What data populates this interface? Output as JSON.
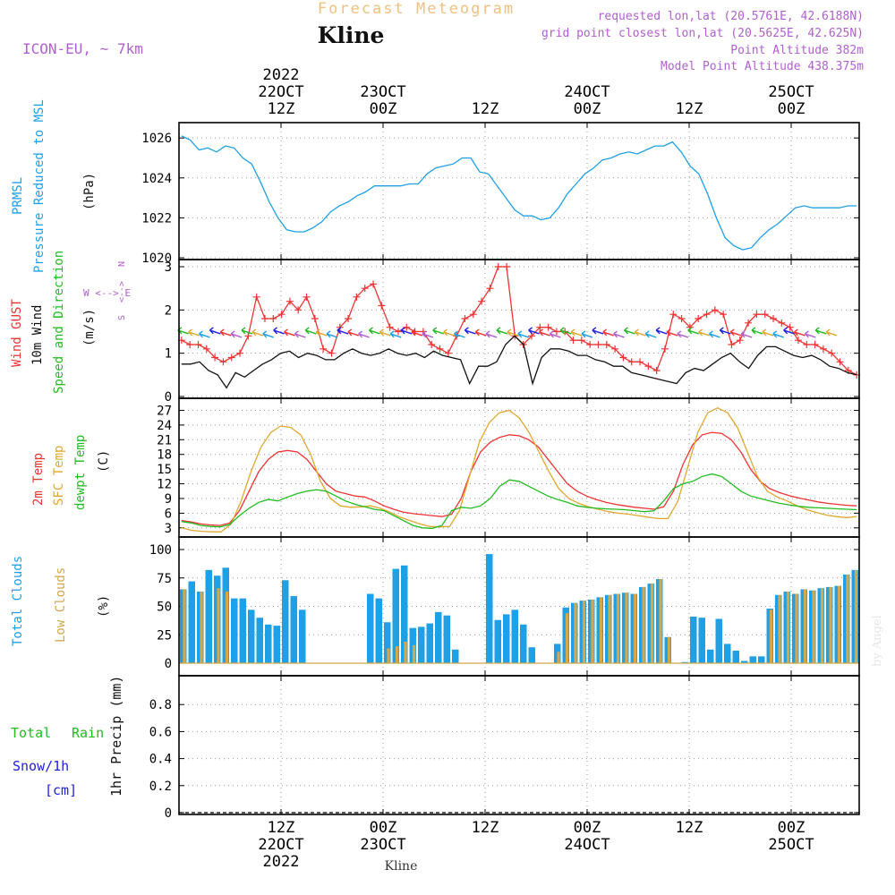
{
  "header": {
    "forecast_title": "Forecast Meteogram",
    "location": "Kline",
    "model": "ICON-EU, ~ 7km",
    "requested": "requested lon,lat (20.5761E, 42.6188N)",
    "gridpoint": "grid point closest lon,lat (20.5625E, 42.625N)",
    "point_alt": "Point Altitude 382m",
    "model_alt": "Model Point Altitude 438.375m",
    "bottom_location": "Kline",
    "watermark": "by Angel"
  },
  "time_axis": {
    "top": [
      {
        "t": 12,
        "lines": [
          "2022",
          "22OCT",
          "12Z"
        ]
      },
      {
        "t": 24,
        "lines": [
          "23OCT",
          "00Z"
        ]
      },
      {
        "t": 36,
        "lines": [
          "12Z"
        ]
      },
      {
        "t": 48,
        "lines": [
          "24OCT",
          "00Z"
        ]
      },
      {
        "t": 60,
        "lines": [
          "12Z"
        ]
      },
      {
        "t": 72,
        "lines": [
          "25OCT",
          "00Z"
        ]
      }
    ],
    "bottom": [
      {
        "t": 12,
        "lines": [
          "12Z",
          "22OCT",
          "2022"
        ]
      },
      {
        "t": 24,
        "lines": [
          "00Z",
          "23OCT"
        ]
      },
      {
        "t": 36,
        "lines": [
          "12Z"
        ]
      },
      {
        "t": 48,
        "lines": [
          "00Z",
          "24OCT"
        ]
      },
      {
        "t": 60,
        "lines": [
          "12Z"
        ]
      },
      {
        "t": 72,
        "lines": [
          "00Z",
          "25OCT"
        ]
      }
    ]
  },
  "panel_labels": {
    "pressure": {
      "a": "PRMSL",
      "b": "Pressure Reduced to MSL",
      "unit": "(hPa)"
    },
    "wind": {
      "a": "Wind GUST",
      "b": "10m Wind",
      "c": "Speed and Direction",
      "unit": "(m/s)",
      "compass_we": "W <--> E",
      "compass_n": "N",
      "compass_s": "S",
      "compass_arrows": "<-->"
    },
    "temp": {
      "a": "2m Temp",
      "b": "SFC Temp",
      "c": "dewpt Temp",
      "unit": "(C)"
    },
    "cloud": {
      "a": "Total Clouds",
      "b": "Low Clouds",
      "unit": "(%)"
    },
    "precip": {
      "a": "Total",
      "a2": "Rain",
      "b": "Snow/1h",
      "c": "[cm]",
      "unit": "1hr Precip (mm)"
    }
  },
  "colors": {
    "pressure": "#1ea0e6",
    "gust": "#ee3333",
    "wind": "#111111",
    "t2m": "#ee3333",
    "tsfc": "#e0a830",
    "dewpt": "#22bb22",
    "total_cloud": "#1ea0e6",
    "low_cloud": "#d2a84a",
    "purple": "#b060d0",
    "title_orange": "#f0c080",
    "blue_label": "#2020e0"
  },
  "chart_data": [
    {
      "type": "line",
      "name": "pressure",
      "ylim": [
        1020,
        1026.5
      ],
      "yticks": [
        1020,
        1022,
        1024,
        1026
      ],
      "series": [
        {
          "name": "PRMSL",
          "values": [
            1026.1,
            1025.9,
            1025.4,
            1025.5,
            1025.3,
            1025.6,
            1025.5,
            1025.0,
            1024.7,
            1023.8,
            1022.8,
            1022.0,
            1021.4,
            1021.3,
            1021.3,
            1021.5,
            1021.8,
            1022.3,
            1022.6,
            1022.8,
            1023.1,
            1023.3,
            1023.6,
            1023.6,
            1023.6,
            1023.6,
            1023.7,
            1023.7,
            1024.2,
            1024.5,
            1024.6,
            1024.7,
            1025.0,
            1025.0,
            1024.3,
            1024.2,
            1023.6,
            1023.0,
            1022.4,
            1022.1,
            1022.1,
            1021.9,
            1022.0,
            1022.5,
            1023.2,
            1023.7,
            1024.2,
            1024.5,
            1024.9,
            1025.0,
            1025.2,
            1025.3,
            1025.2,
            1025.4,
            1025.6,
            1025.6,
            1025.8,
            1025.3,
            1024.6,
            1024.2,
            1023.2,
            1022.0,
            1021.0,
            1020.6,
            1020.4,
            1020.5,
            1021.0,
            1021.4,
            1021.7,
            1022.1,
            1022.5,
            1022.6,
            1022.5,
            1022.5,
            1022.5,
            1022.5,
            1022.6,
            1022.6
          ]
        }
      ]
    },
    {
      "type": "line",
      "name": "wind",
      "ylim": [
        0,
        3
      ],
      "yticks": [
        0,
        1,
        2,
        3
      ],
      "series": [
        {
          "name": "Wind GUST",
          "values": [
            1.3,
            1.2,
            1.2,
            1.1,
            0.9,
            0.8,
            0.9,
            1.0,
            1.4,
            2.3,
            1.8,
            1.8,
            1.9,
            2.2,
            2.0,
            2.3,
            1.8,
            1.1,
            1.0,
            1.6,
            1.8,
            2.3,
            2.5,
            2.6,
            2.1,
            1.6,
            1.5,
            1.6,
            1.5,
            1.5,
            1.2,
            1.1,
            1.0,
            1.4,
            1.8,
            1.9,
            2.2,
            2.5,
            3.0,
            3.0,
            1.4,
            1.2,
            1.4,
            1.6,
            1.6,
            1.5,
            1.5,
            1.3,
            1.3,
            1.2,
            1.2,
            1.2,
            1.1,
            0.9,
            0.8,
            0.8,
            0.7,
            0.6,
            1.1,
            1.9,
            1.8,
            1.6,
            1.8,
            1.9,
            2.0,
            1.9,
            1.2,
            1.3,
            1.7,
            1.9,
            1.9,
            1.8,
            1.7,
            1.6,
            1.3,
            1.2,
            1.2,
            1.1,
            1.0,
            0.8,
            0.6,
            0.5
          ]
        },
        {
          "name": "10m Wind",
          "values": [
            0.75,
            0.75,
            0.8,
            0.6,
            0.5,
            0.2,
            0.55,
            0.45,
            0.6,
            0.75,
            0.85,
            1.0,
            1.05,
            0.9,
            1.0,
            0.95,
            0.85,
            0.85,
            1.0,
            1.1,
            1.0,
            0.95,
            1.0,
            1.1,
            1.0,
            0.95,
            1.0,
            0.9,
            1.05,
            0.95,
            0.9,
            0.85,
            0.3,
            0.7,
            0.7,
            0.8,
            1.2,
            1.4,
            1.2,
            0.3,
            0.9,
            1.1,
            1.1,
            1.05,
            0.95,
            0.95,
            0.85,
            0.8,
            0.7,
            0.7,
            0.55,
            0.5,
            0.45,
            0.4,
            0.35,
            0.3,
            0.55,
            0.65,
            0.6,
            0.75,
            0.9,
            1.0,
            0.8,
            0.65,
            0.95,
            1.15,
            1.15,
            1.05,
            0.95,
            0.9,
            0.95,
            0.85,
            0.7,
            0.65,
            0.55,
            0.5
          ]
        }
      ]
    },
    {
      "type": "line",
      "name": "temperature",
      "ylim": [
        1.5,
        28
      ],
      "yticks": [
        3,
        6,
        9,
        12,
        15,
        18,
        21,
        24,
        27
      ],
      "series": [
        {
          "name": "2m Temp",
          "values": [
            4.5,
            4.2,
            3.8,
            3.6,
            3.5,
            4.0,
            6.5,
            10.5,
            14.5,
            17.0,
            18.5,
            18.8,
            18.5,
            17.0,
            14.5,
            12.0,
            10.5,
            10.0,
            9.5,
            9.3,
            8.5,
            7.5,
            6.8,
            6.2,
            5.9,
            5.7,
            5.5,
            5.3,
            5.8,
            9.0,
            14.5,
            18.5,
            20.5,
            21.5,
            22.0,
            21.8,
            21.0,
            19.5,
            17.0,
            14.5,
            12.0,
            10.5,
            9.5,
            8.8,
            8.2,
            7.8,
            7.5,
            7.2,
            7.0,
            6.8,
            7.3,
            10.5,
            16.0,
            20.0,
            22.0,
            22.5,
            22.3,
            21.0,
            18.5,
            15.0,
            12.5,
            11.0,
            10.2,
            9.6,
            9.1,
            8.7,
            8.3,
            8.0,
            7.8,
            7.6,
            7.5
          ]
        },
        {
          "name": "SFC Temp",
          "values": [
            3.0,
            2.5,
            2.3,
            2.2,
            2.2,
            3.8,
            8.5,
            14.5,
            19.5,
            22.5,
            23.8,
            23.5,
            22.0,
            18.0,
            12.5,
            9.0,
            7.5,
            7.2,
            7.3,
            7.5,
            7.0,
            6.2,
            5.2,
            4.5,
            3.8,
            3.3,
            3.2,
            3.3,
            6.5,
            13.5,
            20.5,
            24.5,
            26.5,
            27.0,
            25.5,
            22.5,
            18.5,
            14.5,
            11.0,
            9.0,
            8.0,
            7.3,
            6.8,
            6.3,
            6.0,
            5.8,
            5.5,
            5.2,
            4.9,
            4.9,
            8.5,
            15.5,
            22.5,
            26.5,
            27.5,
            26.5,
            23.5,
            18.5,
            13.5,
            10.5,
            9.3,
            8.5,
            7.5,
            6.7,
            6.1,
            5.6,
            5.3,
            5.1,
            5.3
          ]
        },
        {
          "name": "dewpt Temp",
          "values": [
            4.3,
            4.0,
            3.5,
            3.3,
            3.2,
            3.7,
            5.5,
            7.0,
            8.2,
            8.8,
            8.5,
            9.3,
            10.0,
            10.5,
            10.8,
            10.5,
            9.5,
            8.5,
            7.8,
            7.3,
            6.8,
            6.5,
            5.5,
            4.5,
            3.5,
            3.0,
            2.9,
            3.5,
            6.5,
            7.2,
            7.0,
            7.5,
            9.0,
            11.5,
            12.8,
            12.5,
            11.5,
            10.5,
            9.5,
            8.8,
            8.2,
            7.5,
            7.2,
            7.0,
            6.9,
            6.8,
            6.7,
            6.5,
            6.3,
            6.5,
            8.5,
            11.0,
            12.0,
            12.5,
            13.5,
            14.0,
            13.5,
            12.0,
            10.5,
            9.5,
            9.0,
            8.5,
            8.0,
            7.7,
            7.4,
            7.2,
            7.1,
            7.0,
            6.9,
            6.8,
            6.7
          ]
        }
      ]
    },
    {
      "type": "bar",
      "name": "clouds",
      "ylim": [
        0,
        100
      ],
      "yticks": [
        0,
        25,
        50,
        75,
        100
      ],
      "series": [
        {
          "name": "Total Clouds",
          "values": [
            65,
            72,
            63,
            82,
            77,
            84,
            57,
            57,
            47,
            40,
            34,
            33,
            73,
            59,
            47,
            0,
            0,
            0,
            0,
            0,
            0,
            0,
            61,
            57,
            36,
            83,
            86,
            31,
            32,
            35,
            45,
            42,
            12,
            0,
            0,
            0,
            96,
            38,
            43,
            47,
            34,
            14,
            0,
            0,
            17,
            49,
            53,
            55,
            56,
            58,
            60,
            61,
            62,
            61,
            67,
            70,
            74,
            23,
            0,
            1,
            41,
            40,
            12,
            39,
            17,
            11,
            2,
            6,
            6,
            48,
            60,
            63,
            61,
            65,
            64,
            66,
            67,
            68,
            78,
            82
          ]
        },
        {
          "name": "Low Clouds",
          "values": [
            65,
            1,
            63,
            1,
            66,
            63,
            1,
            1,
            1,
            1,
            1,
            1,
            1,
            1,
            1,
            1,
            1,
            1,
            1,
            1,
            1,
            1,
            1,
            1,
            13,
            15,
            19,
            16,
            0,
            0,
            0,
            0,
            0,
            0,
            0,
            0,
            0,
            0,
            0,
            0,
            0,
            0,
            0,
            0,
            10,
            44,
            53,
            55,
            56,
            58,
            60,
            61,
            62,
            61,
            67,
            70,
            74,
            23,
            0,
            1,
            0,
            0,
            0,
            0,
            0,
            0,
            0,
            0,
            0,
            47,
            60,
            63,
            61,
            65,
            64,
            66,
            67,
            68,
            78,
            82
          ]
        }
      ]
    },
    {
      "type": "bar",
      "name": "precipitation",
      "ylim": [
        0,
        1
      ],
      "yticks": [
        0,
        0.2,
        0.4,
        0.6,
        0.8
      ],
      "series": [
        {
          "name": "Total Rain",
          "values": []
        }
      ]
    }
  ]
}
